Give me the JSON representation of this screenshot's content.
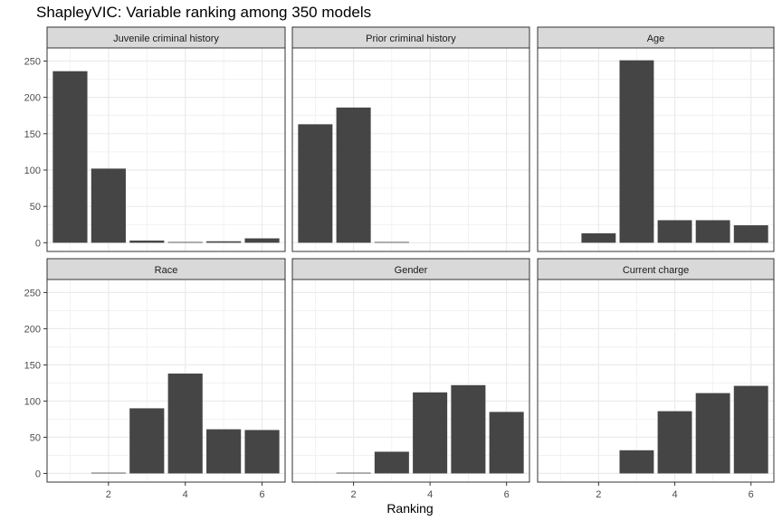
{
  "chart_data": {
    "type": "bar",
    "title": "ShapleyVIC: Variable ranking among 350 models",
    "xlabel": "Ranking",
    "ylabel": "",
    "xlim": [
      0.4,
      6.6
    ],
    "ylim": [
      -12,
      268
    ],
    "x_ticks": [
      2,
      4,
      6
    ],
    "y_ticks": [
      0,
      50,
      100,
      150,
      200,
      250
    ],
    "grid": true,
    "bar_color": "#454545",
    "strip_color": "#d9d9d9",
    "grid_color": "#ebebeb",
    "panels": [
      {
        "name": "Juvenile criminal history",
        "x": [
          1,
          2,
          3,
          4,
          5,
          6
        ],
        "values": [
          236,
          102,
          3,
          1,
          2,
          6
        ]
      },
      {
        "name": "Prior criminal history",
        "x": [
          1,
          2,
          3
        ],
        "values": [
          163,
          186,
          1
        ]
      },
      {
        "name": "Age",
        "x": [
          2,
          3,
          4,
          5,
          6
        ],
        "values": [
          13,
          251,
          31,
          31,
          24
        ]
      },
      {
        "name": "Race",
        "x": [
          2,
          3,
          4,
          5,
          6
        ],
        "values": [
          1,
          90,
          138,
          61,
          60
        ]
      },
      {
        "name": "Gender",
        "x": [
          2,
          3,
          4,
          5,
          6
        ],
        "values": [
          1,
          30,
          112,
          122,
          85
        ]
      },
      {
        "name": "Current charge",
        "x": [
          3,
          4,
          5,
          6
        ],
        "values": [
          32,
          86,
          111,
          121
        ]
      }
    ]
  }
}
